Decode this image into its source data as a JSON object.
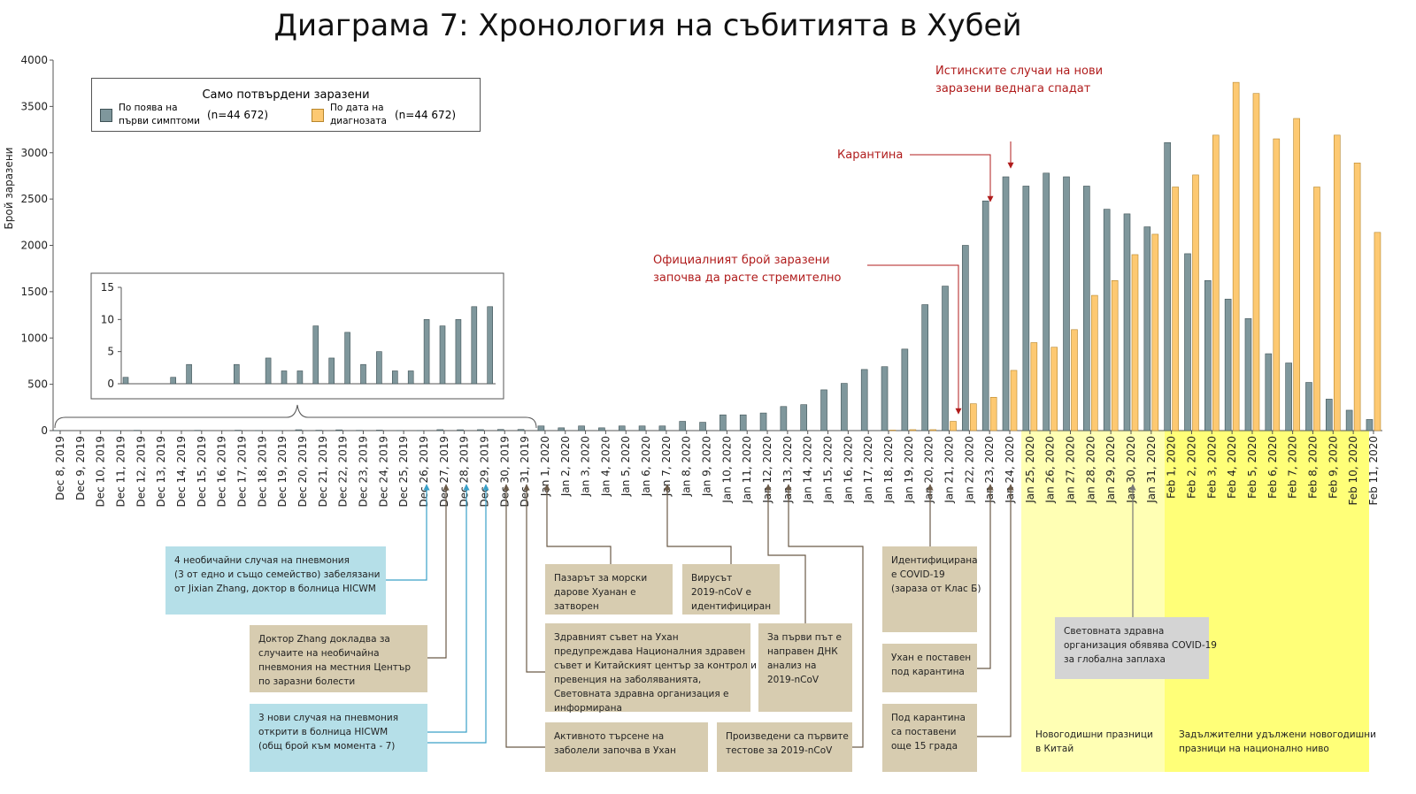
{
  "chart_data": {
    "type": "bar",
    "title": "Диаграма 7: Хронология на събитията в Хубей",
    "y_label": "Брой заразени",
    "legend_title": "Само потвърдени заразени",
    "categories": [
      "Dec 8, 2019",
      "Dec 9, 2019",
      "Dec 10, 2019",
      "Dec 11, 2019",
      "Dec 12, 2019",
      "Dec 13, 2019",
      "Dec 14, 2019",
      "Dec 15, 2019",
      "Dec 16, 2019",
      "Dec 17, 2019",
      "Dec 18, 2019",
      "Dec 19, 2019",
      "Dec 20, 2019",
      "Dec 21, 2019",
      "Dec 22, 2019",
      "Dec 23, 2019",
      "Dec 24, 2019",
      "Dec 25, 2019",
      "Dec 26, 2019",
      "Dec 27, 2019",
      "Dec 28, 2019",
      "Dec 29, 2019",
      "Dec 30, 2019",
      "Dec 31, 2019",
      "Jan 1, 2020",
      "Jan 2, 2020",
      "Jan 3, 2020",
      "Jan 4, 2020",
      "Jan 5, 2020",
      "Jan 6, 2020",
      "Jan 7, 2020",
      "Jan 8, 2020",
      "Jan 9, 2020",
      "Jan 10, 2020",
      "Jan 11, 2020",
      "Jan 12, 2020",
      "Jan 13, 2020",
      "Jan 14, 2020",
      "Jan 15, 2020",
      "Jan 16, 2020",
      "Jan 17, 2020",
      "Jan 18, 2020",
      "Jan 19, 2020",
      "Jan 20, 2020",
      "Jan 21, 2020",
      "Jan 22, 2020",
      "Jan 23, 2020",
      "Jan 24, 2020",
      "Jan 25, 2020",
      "Jan 26, 2020",
      "Jan 27, 2020",
      "Jan 28, 2020",
      "Jan 29, 2020",
      "Jan 30, 2020",
      "Jan 31, 2020",
      "Feb 1, 2020",
      "Feb 2, 2020",
      "Feb 3, 2020",
      "Feb 4, 2020",
      "Feb 5, 2020",
      "Feb 6, 2020",
      "Feb 7, 2020",
      "Feb 8, 2020",
      "Feb 9, 2020",
      "Feb 10, 2020",
      "Feb 11, 2020"
    ],
    "series": [
      {
        "name": [
          "По поява на",
          "първи симптоми"
        ],
        "count_label": "(n=44 672)",
        "color": "#7f979c",
        "stroke": "#3f5256",
        "values": [
          1,
          0,
          0,
          1,
          3,
          0,
          0,
          3,
          0,
          4,
          2,
          2,
          9,
          4,
          8,
          3,
          5,
          2,
          2,
          10,
          9,
          10,
          12,
          12,
          50,
          30,
          50,
          30,
          50,
          50,
          50,
          100,
          90,
          170,
          170,
          190,
          260,
          280,
          440,
          510,
          660,
          690,
          880,
          1360,
          1560,
          2000,
          2480,
          2740,
          2640,
          2780,
          2740,
          2640,
          2390,
          2340,
          2200,
          3110,
          1910,
          1620,
          1420,
          1210,
          830,
          730,
          520,
          340,
          220,
          120
        ]
      },
      {
        "name": [
          "По дата на",
          "диагнозата"
        ],
        "count_label": "(n=44 672)",
        "color": "#fdc972",
        "stroke": "#b7862c",
        "values": [
          0,
          0,
          0,
          0,
          0,
          0,
          0,
          0,
          0,
          0,
          0,
          0,
          0,
          0,
          0,
          0,
          0,
          0,
          0,
          0,
          0,
          0,
          0,
          0,
          0,
          0,
          0,
          0,
          0,
          0,
          0,
          0,
          0,
          0,
          0,
          0,
          0,
          0,
          0,
          0,
          0,
          5,
          10,
          10,
          100,
          290,
          360,
          650,
          950,
          900,
          1090,
          1460,
          1620,
          1900,
          2120,
          2630,
          2760,
          3190,
          3760,
          3640,
          3150,
          3370,
          2630,
          3190,
          2890,
          2140
        ]
      }
    ],
    "ylim": [
      0,
      4000
    ],
    "yticks": [
      0,
      500,
      1000,
      1500,
      2000,
      2500,
      3000,
      3500,
      4000
    ],
    "grid": false,
    "inset": {
      "ylim": [
        0,
        15
      ],
      "yticks": [
        0,
        5,
        10,
        15
      ]
    },
    "callouts": [
      [
        "Истинските случаи на нови",
        "заразени веднага спадат"
      ],
      [
        "Карантина"
      ],
      [
        "Официалният брой заразени",
        "започва да расте стремително"
      ]
    ],
    "notes": [
      [
        "4 необичайни случая на пневмония",
        "(3 от едно и също семейство) забелязани",
        "от Jixian Zhang, доктор в болница HICWM"
      ],
      [
        "Доктор Zhang докладва за",
        "случаите на необичайна",
        "пневмония на местния Център",
        "по заразни болести"
      ],
      [
        "3 нови случая на пневмония",
        "открити в болница HICWM",
        "(общ брой към момента - 7)"
      ],
      [
        "Активното търсене на",
        "заболели започва в Ухан"
      ],
      [
        "Пазарът за морски",
        "дарове Хуанан е",
        "затворен"
      ],
      [
        "Здравният съвет на Ухан",
        "предупреждава Националния здравен",
        "съвет и Китайският център за контрол и",
        "превенция на заболяванията,",
        "Световната здравна организация е",
        "информирана"
      ],
      [
        "Вирусът",
        "2019-nCoV е",
        "идентифициран"
      ],
      [
        "За първи път е",
        "направен ДНК",
        "анализ на",
        "2019-nCoV"
      ],
      [
        "Произведени са първите",
        "тестове за 2019-nCoV"
      ],
      [
        "Идентифицирана",
        "е COVID-19",
        "(зараза от Клас Б)"
      ],
      [
        "Ухан е поставен",
        "под карантина"
      ],
      [
        "Под карантина",
        "са поставени",
        "още 15 града"
      ],
      [
        "Новогодишни празници",
        "в Китай"
      ],
      [
        "Задължителни удължени новогодишни",
        "празници на национално ниво"
      ],
      [
        "Световната здравна",
        "организация обявява COVID-19",
        "за глобална заплаха"
      ]
    ]
  }
}
